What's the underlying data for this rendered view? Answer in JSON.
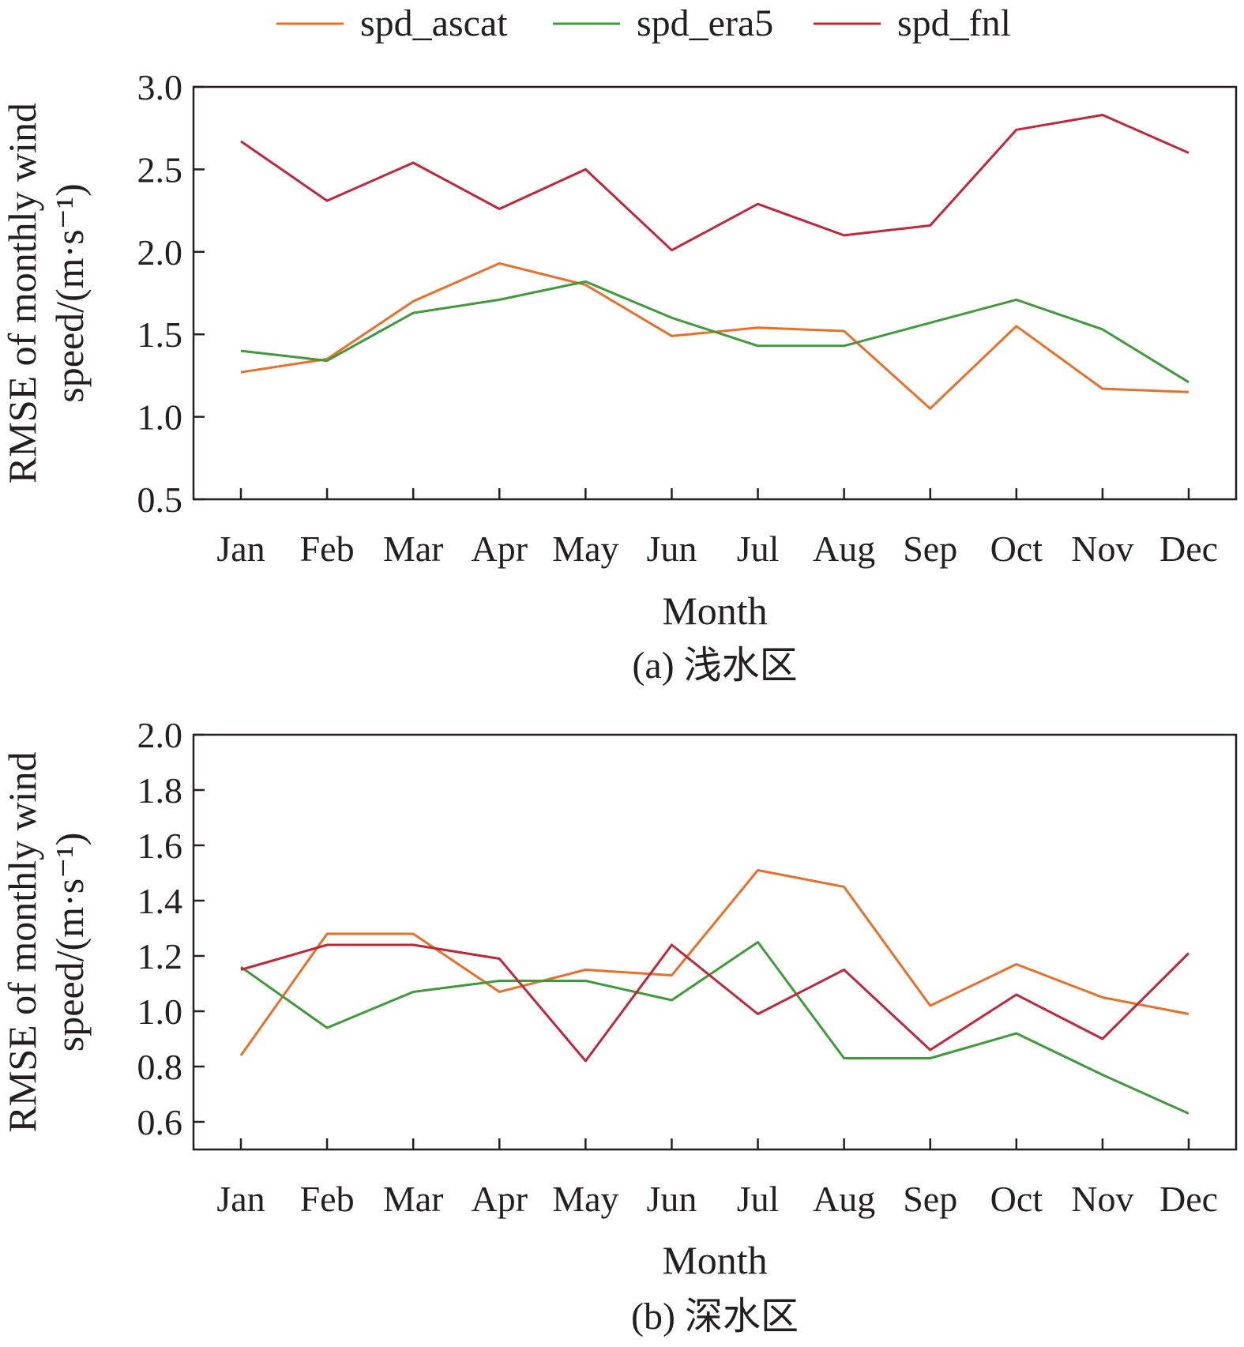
{
  "legend": {
    "entries": [
      {
        "name": "spd_ascat",
        "color": "#e8702a"
      },
      {
        "name": "spd_era5",
        "color": "#3f9a3a"
      },
      {
        "name": "spd_fnl",
        "color": "#c0283a"
      }
    ]
  },
  "chart_data": [
    {
      "type": "line",
      "title": "",
      "caption": "(a) 浅水区",
      "xlabel": "Month",
      "ylabel_line1": "RMSE of monthly wind",
      "ylabel_line2": "speed/(m·s⁻¹)",
      "ylim": [
        0.5,
        3.0
      ],
      "yticks": [
        "0.5",
        "1.0",
        "1.5",
        "2.0",
        "2.5",
        "3.0"
      ],
      "categories": [
        "Jan",
        "Feb",
        "Mar",
        "Apr",
        "May",
        "Jun",
        "Jul",
        "Aug",
        "Sep",
        "Oct",
        "Nov",
        "Dec"
      ],
      "series": [
        {
          "name": "spd_ascat",
          "color": "#e8702a",
          "values": [
            1.27,
            1.35,
            1.7,
            1.93,
            1.8,
            1.49,
            1.54,
            1.52,
            1.05,
            1.55,
            1.17,
            1.15
          ]
        },
        {
          "name": "spd_era5",
          "color": "#3f9a3a",
          "values": [
            1.4,
            1.34,
            1.63,
            1.71,
            1.82,
            1.6,
            1.43,
            1.43,
            1.57,
            1.71,
            1.53,
            1.21
          ]
        },
        {
          "name": "spd_fnl",
          "color": "#c0283a",
          "values": [
            2.67,
            2.31,
            2.54,
            2.26,
            2.5,
            2.01,
            2.29,
            2.1,
            2.16,
            2.74,
            2.83,
            2.6
          ]
        }
      ]
    },
    {
      "type": "line",
      "title": "",
      "caption": "(b) 深水区",
      "xlabel": "Month",
      "ylabel_line1": "RMSE of monthly wind",
      "ylabel_line2": "speed/(m·s⁻¹)",
      "ylim": [
        0.5,
        2.0
      ],
      "yticks": [
        "0.6",
        "0.8",
        "1.0",
        "1.2",
        "1.4",
        "1.6",
        "1.8",
        "2.0"
      ],
      "categories": [
        "Jan",
        "Feb",
        "Mar",
        "Apr",
        "May",
        "Jun",
        "Jul",
        "Aug",
        "Sep",
        "Oct",
        "Nov",
        "Dec"
      ],
      "series": [
        {
          "name": "spd_ascat",
          "color": "#e8702a",
          "values": [
            0.84,
            1.28,
            1.28,
            1.07,
            1.15,
            1.13,
            1.51,
            1.45,
            1.02,
            1.17,
            1.05,
            0.99
          ]
        },
        {
          "name": "spd_era5",
          "color": "#3f9a3a",
          "values": [
            1.16,
            0.94,
            1.07,
            1.11,
            1.11,
            1.04,
            1.25,
            0.83,
            0.83,
            0.92,
            0.77,
            0.63
          ]
        },
        {
          "name": "spd_fnl",
          "color": "#c0283a",
          "values": [
            1.15,
            1.24,
            1.24,
            1.19,
            0.82,
            1.24,
            0.99,
            1.15,
            0.86,
            1.06,
            0.9,
            1.21
          ]
        }
      ]
    }
  ]
}
